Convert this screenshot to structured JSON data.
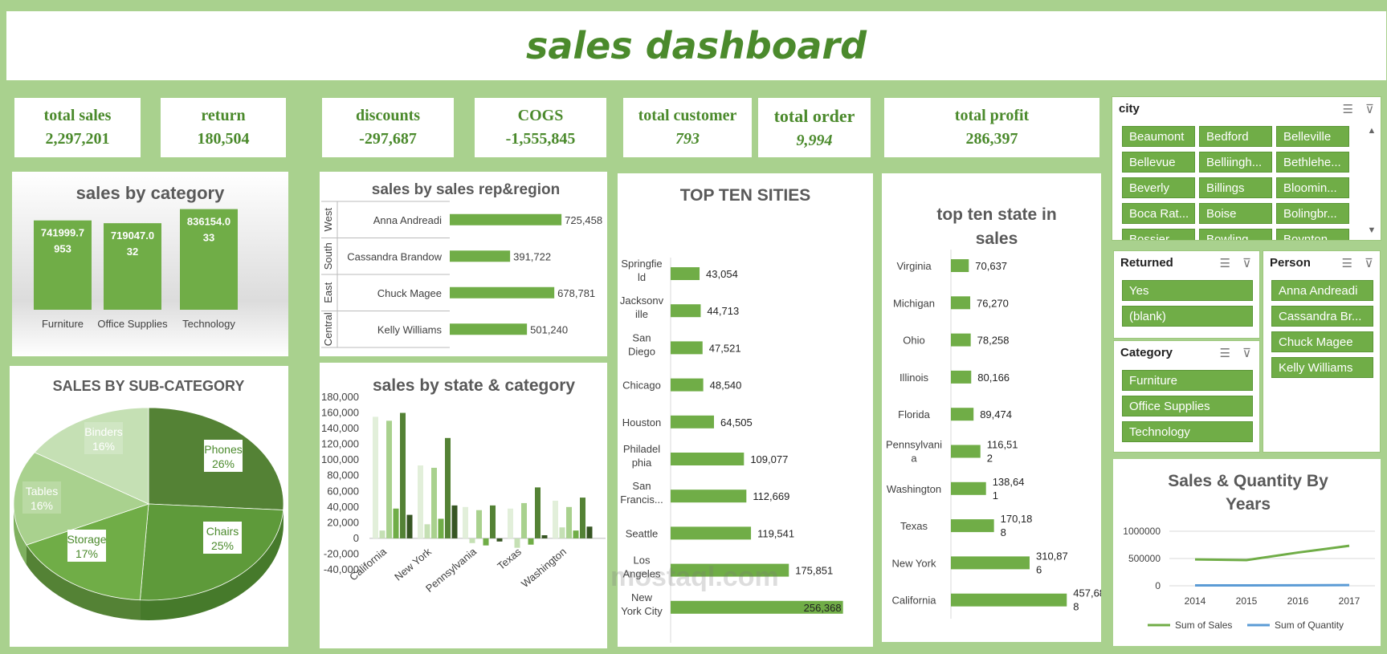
{
  "title": "sales dashboard",
  "kpis": {
    "total_sales": {
      "label": "total sales",
      "value": "2,297,201"
    },
    "return": {
      "label": "return",
      "value": "180,504"
    },
    "discounts": {
      "label": "discounts",
      "value": "-297,687"
    },
    "cogs": {
      "label": "COGS",
      "value": "-1,555,845"
    },
    "total_customer": {
      "label": "total customer",
      "value": "793"
    },
    "total_order": {
      "label": "total order",
      "value": "9,994"
    },
    "total_profit": {
      "label": "total profit",
      "value": "286,397"
    }
  },
  "chart_data": [
    {
      "id": "category",
      "type": "bar",
      "title": "sales by category",
      "categories": [
        "Furniture",
        "Office Supplies",
        "Technology"
      ],
      "values": [
        741999.7953,
        719047.032,
        836154.033
      ],
      "labels": [
        [
          "741999.7",
          "953"
        ],
        [
          "719047.0",
          "32"
        ],
        [
          "836154.0",
          "33"
        ]
      ]
    },
    {
      "id": "rep_region",
      "type": "bar",
      "title": "sales by sales rep&region",
      "regions": [
        "West",
        "South",
        "East",
        "Central"
      ],
      "categories": [
        "Anna Andreadi",
        "Cassandra Brandow",
        "Chuck Magee",
        "Kelly Williams"
      ],
      "values": [
        725458,
        391722,
        678781,
        501240
      ],
      "labels": [
        "725,458",
        "391,722",
        "678,781",
        "501,240"
      ]
    },
    {
      "id": "cities",
      "type": "bar",
      "title": "TOP TEN SITIES",
      "categories": [
        [
          "Springfie",
          "ld"
        ],
        [
          "Jacksonv",
          "ille"
        ],
        [
          "San",
          "Diego"
        ],
        [
          "Chicago"
        ],
        [
          "Houston"
        ],
        [
          "Philadel",
          "phia"
        ],
        [
          "San",
          "Francis..."
        ],
        [
          "Seattle"
        ],
        [
          "Los",
          "Angeles"
        ],
        [
          "New",
          "York City"
        ]
      ],
      "values": [
        43054,
        44713,
        47521,
        48540,
        64505,
        109077,
        112669,
        119541,
        175851,
        256368
      ],
      "labels": [
        "43,054",
        "44,713",
        "47,521",
        "48,540",
        "64,505",
        "109,077",
        "112,669",
        "119,541",
        "175,851",
        "256,368"
      ]
    },
    {
      "id": "states",
      "type": "bar",
      "title": "top ten state in sales",
      "title_lines": [
        "top ten state in",
        "sales"
      ],
      "categories": [
        [
          "Virginia"
        ],
        [
          "Michigan"
        ],
        [
          "Ohio"
        ],
        [
          "Illinois"
        ],
        [
          "Florida"
        ],
        [
          "Pennsylvani",
          "a"
        ],
        [
          "Washington"
        ],
        [
          "Texas"
        ],
        [
          "New York"
        ],
        [
          "California"
        ]
      ],
      "values": [
        70637,
        76270,
        78258,
        80166,
        89474,
        116512,
        138641,
        170188,
        310876,
        457688
      ],
      "labels": [
        [
          "70,637"
        ],
        [
          "76,270"
        ],
        [
          "78,258"
        ],
        [
          "80,166"
        ],
        [
          "89,474"
        ],
        [
          "116,51",
          "2"
        ],
        [
          "138,64",
          "1"
        ],
        [
          "170,18",
          "8"
        ],
        [
          "310,87",
          "6"
        ],
        [
          "457,68",
          "8"
        ]
      ]
    },
    {
      "id": "subcategory",
      "type": "pie",
      "title": "SALES BY SUB-CATEGORY",
      "slices": [
        {
          "name": "Phones",
          "pct": "26%",
          "value": 26
        },
        {
          "name": "Chairs",
          "pct": "25%",
          "value": 25
        },
        {
          "name": "Storage",
          "pct": "17%",
          "value": 17
        },
        {
          "name": "Tables",
          "pct": "16%",
          "value": 16
        },
        {
          "name": "Binders",
          "pct": "16%",
          "value": 16
        }
      ]
    },
    {
      "id": "state_category",
      "type": "bar",
      "title": "sales by state & category",
      "ylim": [
        -40000,
        180000
      ],
      "yticks": [
        "180,000",
        "160,000",
        "140,000",
        "120,000",
        "100,000",
        "80,000",
        "60,000",
        "40,000",
        "20,000",
        "0",
        "-20,000",
        "-40,000"
      ],
      "xlabels": [
        "California",
        "New York",
        "Pennsylvania",
        "Texas",
        "Washington"
      ],
      "groups": [
        [
          155000,
          10000,
          150000,
          38000,
          160000,
          30000
        ],
        [
          93000,
          18000,
          90000,
          25000,
          128000,
          42000
        ],
        [
          40000,
          -6000,
          36000,
          -9000,
          42000,
          -4000
        ],
        [
          38000,
          -12000,
          45000,
          -8000,
          65000,
          4000
        ],
        [
          48000,
          14000,
          40000,
          10000,
          52000,
          15000
        ]
      ]
    },
    {
      "id": "years",
      "type": "line",
      "title": "Sales & Quantity By Years",
      "title_lines": [
        "Sales & Quantity By",
        "Years"
      ],
      "x": [
        "2014",
        "2015",
        "2016",
        "2017"
      ],
      "ylim": [
        0,
        1000000
      ],
      "yticks": [
        "1000000",
        "500000",
        "0"
      ],
      "series": [
        {
          "name": "Sum of Sales",
          "color": "#70ad47",
          "values": [
            484247,
            470533,
            609206,
            733215
          ]
        },
        {
          "name": "Sum of Quantity",
          "color": "#5b9bd5",
          "values": [
            7581,
            7979,
            9837,
            12476
          ]
        }
      ]
    }
  ],
  "slicers": {
    "city": {
      "label": "city",
      "items": [
        "Beaumont",
        "Bedford",
        "Belleville",
        "Bellevue",
        "Belliingh...",
        "Bethlehe...",
        "Beverly",
        "Billings",
        "Bloomin...",
        "Boca Rat...",
        "Boise",
        "Bolingbr...",
        "Bossier...",
        "Bowling...",
        "Boynton..."
      ]
    },
    "returned": {
      "label": "Returned",
      "items": [
        "Yes",
        "(blank)"
      ]
    },
    "category": {
      "label": "Category",
      "items": [
        "Furniture",
        "Office Supplies",
        "Technology"
      ]
    },
    "person": {
      "label": "Person",
      "items": [
        "Anna Andreadi",
        "Cassandra Br...",
        "Chuck Magee",
        "Kelly Williams"
      ]
    }
  },
  "watermark": "mostaql.com",
  "colors": {
    "accent": "#70ad47",
    "title": "#4b8a2c",
    "background": "#a9d18e"
  }
}
